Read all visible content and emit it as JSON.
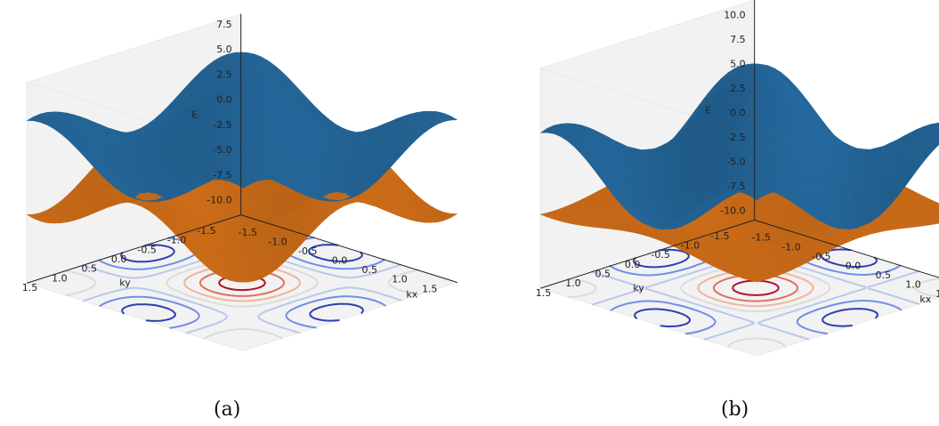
{
  "colors": {
    "upper_band": "#2a78b4",
    "lower_band": "#f07f1c",
    "pane": "#f2f2f2",
    "contour_levels": [
      "#2f3fb0",
      "#6f8fe8",
      "#b8c8ee",
      "#dcdcdc",
      "#f2b49a",
      "#e27058",
      "#b2112a"
    ]
  },
  "chart_data": [
    {
      "type": "surface3d",
      "panel_label": "(a)",
      "xlabel": "kx",
      "ylabel": "ky",
      "zlabel": "E",
      "xticks": [
        "-1.5",
        "-1.0",
        "-0.5",
        "0.0",
        "0.5",
        "1.0",
        "1.5"
      ],
      "yticks": [
        "1.5",
        "1.0",
        "0.5",
        "0.0",
        "-0.5",
        "-1.0",
        "-1.5"
      ],
      "zticks": [
        "7.5",
        "5.0",
        "2.5",
        "0.0",
        "-2.5",
        "-5.0",
        "-7.5",
        "-10.0"
      ],
      "xlim": [
        -1.8,
        1.8
      ],
      "ylim": [
        -1.8,
        1.8
      ],
      "zlim": [
        -11.5,
        8.5
      ],
      "series": [
        {
          "band": "upper",
          "color": "#2a78b4",
          "E_at_center": 8.5,
          "E_at_edges": -0.2,
          "E_at_corners": 5.2
        },
        {
          "band": "lower",
          "color": "#f07f1c",
          "E_at_center": -8.5,
          "E_at_edges": 0.2,
          "E_at_corners": -5.2
        }
      ],
      "contour_projection": "bottom plane (E = -11.5)"
    },
    {
      "type": "surface3d",
      "panel_label": "(b)",
      "xlabel": "kx",
      "ylabel": "ky",
      "zlabel": "E",
      "xticks": [
        "-1.5",
        "-1.0",
        "-0.5",
        "0.0",
        "0.5",
        "1.0",
        "1.5"
      ],
      "yticks": [
        "1.5",
        "1.0",
        "0.5",
        "0.0",
        "-0.5",
        "-1.0",
        "-1.5"
      ],
      "zticks": [
        "10.0",
        "7.5",
        "5.0",
        "2.5",
        "0.0",
        "-2.5",
        "-5.0",
        "-7.5",
        "-10.0"
      ],
      "xlim": [
        -1.8,
        1.8
      ],
      "ylim": [
        -1.8,
        1.8
      ],
      "zlim": [
        -11.0,
        11.5
      ],
      "series": [
        {
          "band": "upper",
          "color": "#2a78b4",
          "E_at_center": 11.5,
          "E_at_edges": -1.8,
          "E_at_corners": 5.6
        },
        {
          "band": "lower",
          "color": "#f07f1c",
          "E_at_center": -7.0,
          "E_at_edges": -2.0,
          "E_at_corners": -3.6
        }
      ],
      "contour_projection": "bottom plane (E = -11.0)"
    }
  ]
}
